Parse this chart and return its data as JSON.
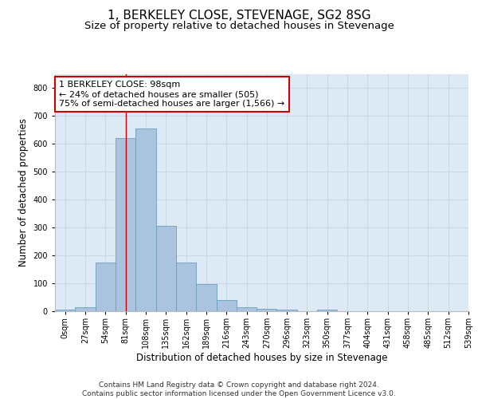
{
  "title_line1": "1, BERKELEY CLOSE, STEVENAGE, SG2 8SG",
  "title_line2": "Size of property relative to detached houses in Stevenage",
  "xlabel": "Distribution of detached houses by size in Stevenage",
  "ylabel": "Number of detached properties",
  "bar_values": [
    5,
    13,
    175,
    620,
    655,
    305,
    175,
    97,
    40,
    15,
    10,
    5,
    0,
    5,
    0,
    0,
    0,
    0,
    0,
    0
  ],
  "bin_labels": [
    "0sqm",
    "27sqm",
    "54sqm",
    "81sqm",
    "108sqm",
    "135sqm",
    "162sqm",
    "189sqm",
    "216sqm",
    "243sqm",
    "270sqm",
    "296sqm",
    "323sqm",
    "350sqm",
    "377sqm",
    "404sqm",
    "431sqm",
    "458sqm",
    "485sqm",
    "512sqm",
    "539sqm"
  ],
  "bar_color": "#aac4df",
  "bar_edge_color": "#6a9ec0",
  "grid_color": "#c8d8ea",
  "background_color": "#ddeaf6",
  "vline_x": 3.5,
  "vline_color": "#cc0000",
  "annotation_text": "1 BERKELEY CLOSE: 98sqm\n← 24% of detached houses are smaller (505)\n75% of semi-detached houses are larger (1,566) →",
  "annotation_box_color": "#ffffff",
  "annotation_box_edge_color": "#cc0000",
  "ylim": [
    0,
    850
  ],
  "yticks": [
    0,
    100,
    200,
    300,
    400,
    500,
    600,
    700,
    800
  ],
  "footer_text": "Contains HM Land Registry data © Crown copyright and database right 2024.\nContains public sector information licensed under the Open Government Licence v3.0.",
  "title_fontsize": 11,
  "subtitle_fontsize": 9.5,
  "axis_label_fontsize": 8.5,
  "tick_fontsize": 7,
  "annotation_fontsize": 8,
  "footer_fontsize": 6.5
}
